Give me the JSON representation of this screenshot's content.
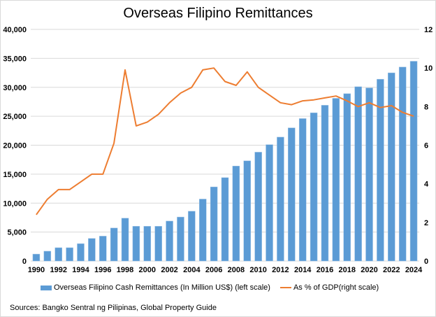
{
  "chart_data": {
    "type": "bar+line",
    "title": "Overseas Filipino Remittances",
    "categories": [
      1990,
      1991,
      1992,
      1993,
      1994,
      1995,
      1996,
      1997,
      1998,
      1999,
      2000,
      2001,
      2002,
      2003,
      2004,
      2005,
      2006,
      2007,
      2008,
      2009,
      2010,
      2011,
      2012,
      2013,
      2014,
      2015,
      2016,
      2017,
      2018,
      2019,
      2020,
      2021,
      2022,
      2023,
      2024
    ],
    "x_tick_labels": [
      "1990",
      "1992",
      "1994",
      "1996",
      "1998",
      "2000",
      "2002",
      "2004",
      "2006",
      "2008",
      "2010",
      "2012",
      "2014",
      "2016",
      "2018",
      "2020",
      "2022",
      "2024"
    ],
    "series": [
      {
        "name": "Overseas Filipino Cash Remittances (In Million US$) (left scale)",
        "type": "bar",
        "axis": "left",
        "color": "#5b9bd5",
        "values": [
          1200,
          1700,
          2300,
          2300,
          3000,
          3900,
          4300,
          5700,
          7400,
          6000,
          6000,
          6000,
          6900,
          7600,
          8600,
          10700,
          12800,
          14400,
          16400,
          17300,
          18800,
          20100,
          21400,
          23000,
          24600,
          25600,
          26900,
          28100,
          28900,
          30100,
          29900,
          31400,
          32500,
          33500,
          34500
        ]
      },
      {
        "name": "As % of GDP(right scale)",
        "type": "line",
        "axis": "right",
        "color": "#ed7d31",
        "values": [
          2.4,
          3.2,
          3.7,
          3.7,
          4.1,
          4.5,
          4.5,
          6.1,
          9.9,
          7.0,
          7.2,
          7.6,
          8.2,
          8.7,
          9.0,
          9.9,
          10.0,
          9.3,
          9.1,
          9.8,
          9.0,
          8.6,
          8.2,
          8.1,
          8.3,
          8.35,
          8.45,
          8.55,
          8.3,
          8.0,
          8.2,
          7.95,
          8.05,
          7.7,
          7.5
        ]
      }
    ],
    "y_left": {
      "range": [
        0,
        40000
      ],
      "ticks": [
        "0",
        "5,000",
        "10,000",
        "15,000",
        "20,000",
        "25,000",
        "30,000",
        "35,000",
        "40,000"
      ]
    },
    "y_right": {
      "range": [
        0,
        12
      ],
      "ticks": [
        "0",
        "2",
        "4",
        "6",
        "8",
        "10",
        "12"
      ]
    },
    "grid": true,
    "legend_position": "bottom",
    "source": "Sources: Bangko Sentral ng Pilipinas, Global Property Guide"
  }
}
